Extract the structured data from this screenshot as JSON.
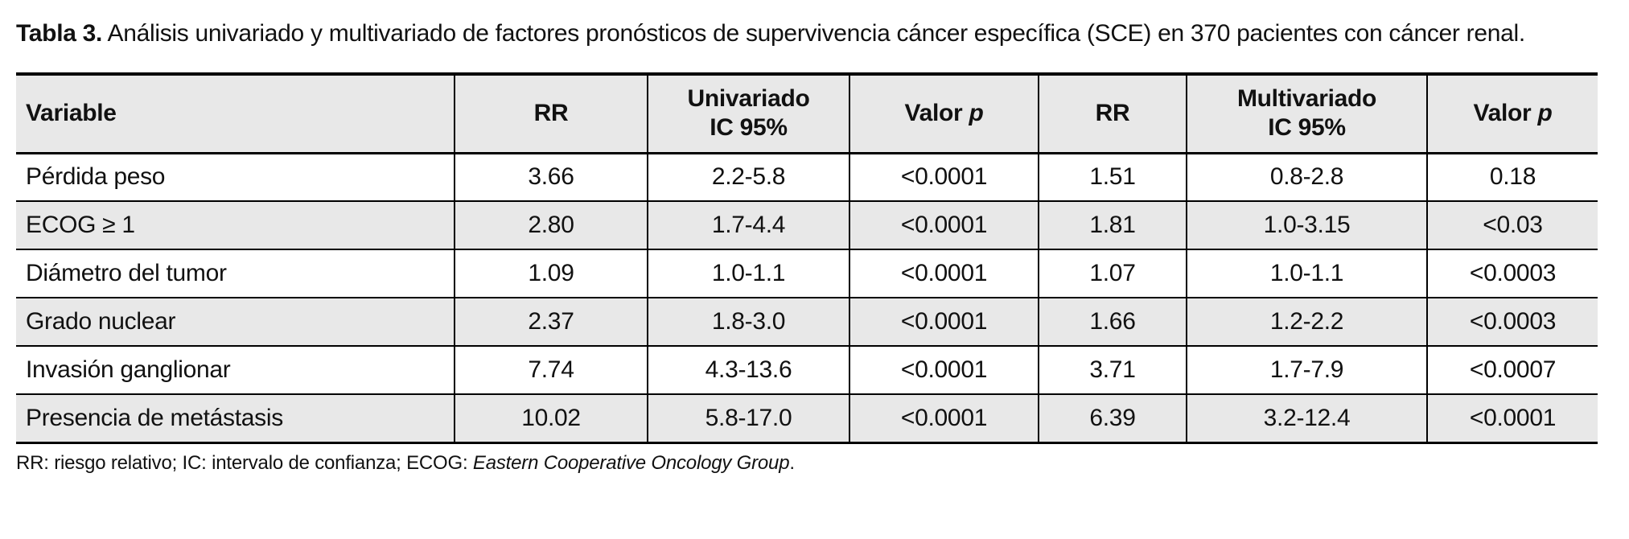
{
  "caption": {
    "label": "Tabla 3.",
    "text": "Análisis univariado y multivariado de factores pronósticos de supervivencia cáncer específica (SCE) en 370 pacientes con cáncer renal."
  },
  "table": {
    "columns": [
      {
        "label": "Variable"
      },
      {
        "label": "RR"
      },
      {
        "line1": "Univariado",
        "line2": "IC 95%"
      },
      {
        "prefix": "Valor",
        "italic": "p"
      },
      {
        "label": "RR"
      },
      {
        "line1": "Multivariado",
        "line2": "IC 95%"
      },
      {
        "prefix": "Valor",
        "italic": "p"
      }
    ],
    "rows": [
      [
        "Pérdida peso",
        "3.66",
        "2.2-5.8",
        "<0.0001",
        "1.51",
        "0.8-2.8",
        "0.18"
      ],
      [
        "ECOG ≥ 1",
        "2.80",
        "1.7-4.4",
        "<0.0001",
        "1.81",
        "1.0-3.15",
        "<0.03"
      ],
      [
        "Diámetro del tumor",
        "1.09",
        "1.0-1.1",
        "<0.0001",
        "1.07",
        "1.0-1.1",
        "<0.0003"
      ],
      [
        "Grado nuclear",
        "2.37",
        "1.8-3.0",
        "<0.0001",
        "1.66",
        "1.2-2.2",
        "<0.0003"
      ],
      [
        "Invasión ganglionar",
        "7.74",
        "4.3-13.6",
        "<0.0001",
        "3.71",
        "1.7-7.9",
        "<0.0007"
      ],
      [
        "Presencia de metástasis",
        "10.02",
        "5.8-17.0",
        "<0.0001",
        "6.39",
        "3.2-12.4",
        "<0.0001"
      ]
    ]
  },
  "footnote": {
    "prefix": "RR: riesgo relativo; IC: intervalo de confianza; ECOG: ",
    "italic": "Eastern Cooperative Oncology Group",
    "suffix": "."
  },
  "colors": {
    "header_bg": "#e8e8e8",
    "row_alt_bg": "#e8e8e8",
    "border": "#000000",
    "text": "#111111",
    "page_bg": "#ffffff"
  }
}
